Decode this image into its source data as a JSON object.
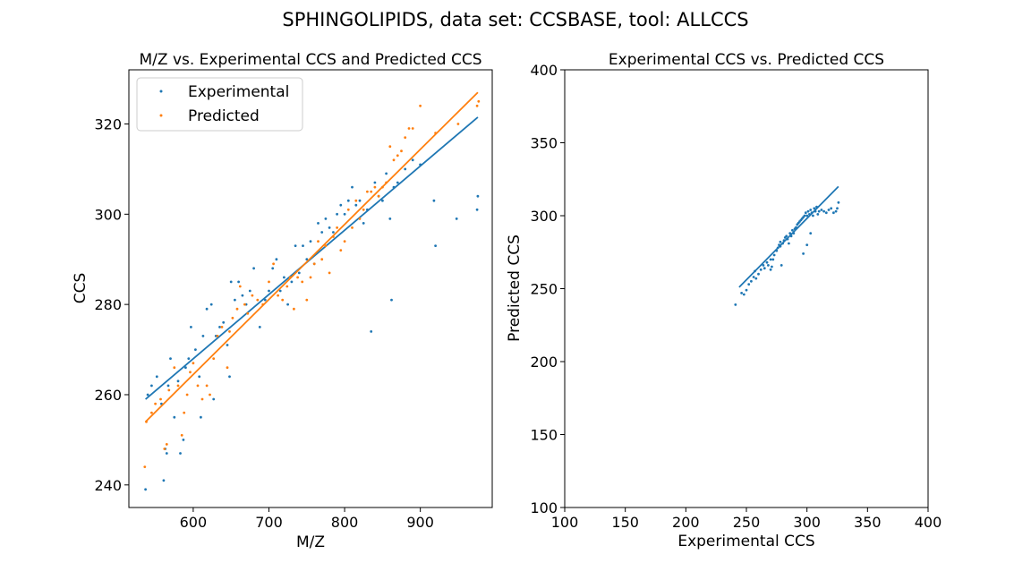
{
  "figure": {
    "suptitle": "SPHINGOLIPIDS, data set: CCSBASE, tool: ALLCCS"
  },
  "colors": {
    "experimental": "#1f77b4",
    "predicted": "#ff7f0e",
    "axes": "#000000",
    "background": "#ffffff"
  },
  "chart_data": [
    {
      "type": "scatter",
      "title": "M/Z vs. Experimental CCS and Predicted CCS",
      "xlabel": "M/Z",
      "ylabel": "CCS",
      "xlim": [
        515,
        995
      ],
      "ylim": [
        235,
        332
      ],
      "xticks": [
        600,
        700,
        800,
        900
      ],
      "yticks": [
        240,
        260,
        280,
        300,
        320
      ],
      "grid": false,
      "legend": "top-left",
      "series": [
        {
          "name": "Experimental",
          "color": "#1f77b4",
          "points": [
            [
              537,
              239
            ],
            [
              540,
              260
            ],
            [
              545,
              262
            ],
            [
              552,
              264
            ],
            [
              558,
              258
            ],
            [
              561,
              241
            ],
            [
              563,
              248
            ],
            [
              565,
              247
            ],
            [
              567,
              262
            ],
            [
              570,
              268
            ],
            [
              575,
              255
            ],
            [
              580,
              263
            ],
            [
              583,
              247
            ],
            [
              587,
              250
            ],
            [
              590,
              266
            ],
            [
              594,
              268
            ],
            [
              597,
              275
            ],
            [
              603,
              270
            ],
            [
              608,
              264
            ],
            [
              610,
              255
            ],
            [
              613,
              273
            ],
            [
              618,
              279
            ],
            [
              624,
              280
            ],
            [
              627,
              259
            ],
            [
              630,
              273
            ],
            [
              635,
              275
            ],
            [
              640,
              276
            ],
            [
              645,
              271
            ],
            [
              648,
              264
            ],
            [
              650,
              285
            ],
            [
              655,
              281
            ],
            [
              660,
              285
            ],
            [
              665,
              282
            ],
            [
              670,
              280
            ],
            [
              675,
              283
            ],
            [
              680,
              288
            ],
            [
              688,
              275
            ],
            [
              695,
              281
            ],
            [
              700,
              283
            ],
            [
              705,
              288
            ],
            [
              710,
              290
            ],
            [
              715,
              283
            ],
            [
              720,
              286
            ],
            [
              725,
              280
            ],
            [
              730,
              285
            ],
            [
              735,
              293
            ],
            [
              740,
              287
            ],
            [
              745,
              293
            ],
            [
              750,
              290
            ],
            [
              755,
              294
            ],
            [
              760,
              289
            ],
            [
              765,
              298
            ],
            [
              770,
              296
            ],
            [
              775,
              299
            ],
            [
              780,
              297
            ],
            [
              785,
              296
            ],
            [
              790,
              300
            ],
            [
              795,
              302
            ],
            [
              800,
              300
            ],
            [
              805,
              303
            ],
            [
              810,
              306
            ],
            [
              815,
              302
            ],
            [
              820,
              303
            ],
            [
              825,
              298
            ],
            [
              830,
              301
            ],
            [
              835,
              274
            ],
            [
              840,
              307
            ],
            [
              845,
              304
            ],
            [
              850,
              303
            ],
            [
              855,
              309
            ],
            [
              860,
              299
            ],
            [
              862,
              281
            ],
            [
              865,
              306
            ],
            [
              870,
              307
            ],
            [
              880,
              310
            ],
            [
              890,
              312
            ],
            [
              900,
              311
            ],
            [
              918,
              303
            ],
            [
              920,
              293
            ],
            [
              948,
              299
            ],
            [
              975,
              301
            ],
            [
              976,
              304
            ]
          ],
          "trend": [
            [
              537,
              259
            ],
            [
              976,
              321.5
            ]
          ]
        },
        {
          "name": "Predicted",
          "color": "#ff7f0e",
          "points": [
            [
              536,
              244
            ],
            [
              538,
              254
            ],
            [
              545,
              256
            ],
            [
              550,
              258
            ],
            [
              557,
              259
            ],
            [
              562,
              248
            ],
            [
              565,
              249
            ],
            [
              568,
              261
            ],
            [
              575,
              266
            ],
            [
              580,
              262
            ],
            [
              585,
              251
            ],
            [
              588,
              256
            ],
            [
              592,
              260
            ],
            [
              596,
              265
            ],
            [
              600,
              267
            ],
            [
              606,
              262
            ],
            [
              612,
              259
            ],
            [
              618,
              262
            ],
            [
              622,
              260
            ],
            [
              627,
              268
            ],
            [
              632,
              273
            ],
            [
              638,
              275
            ],
            [
              645,
              266
            ],
            [
              648,
              274
            ],
            [
              652,
              277
            ],
            [
              658,
              279
            ],
            [
              662,
              284
            ],
            [
              668,
              280
            ],
            [
              672,
              278
            ],
            [
              678,
              282
            ],
            [
              685,
              281
            ],
            [
              692,
              280
            ],
            [
              700,
              285
            ],
            [
              706,
              289
            ],
            [
              712,
              282
            ],
            [
              718,
              281
            ],
            [
              724,
              284
            ],
            [
              728,
              286
            ],
            [
              733,
              279
            ],
            [
              738,
              286
            ],
            [
              744,
              285
            ],
            [
              750,
              281
            ],
            [
              755,
              286
            ],
            [
              760,
              289
            ],
            [
              765,
              294
            ],
            [
              770,
              290
            ],
            [
              775,
              293
            ],
            [
              780,
              287
            ],
            [
              785,
              295
            ],
            [
              790,
              297
            ],
            [
              795,
              292
            ],
            [
              800,
              294
            ],
            [
              805,
              301
            ],
            [
              810,
              297
            ],
            [
              815,
              303
            ],
            [
              820,
              299
            ],
            [
              825,
              301
            ],
            [
              830,
              305
            ],
            [
              835,
              305
            ],
            [
              840,
              306
            ],
            [
              845,
              304
            ],
            [
              850,
              306
            ],
            [
              855,
              307
            ],
            [
              860,
              315
            ],
            [
              865,
              312
            ],
            [
              870,
              313
            ],
            [
              875,
              314
            ],
            [
              880,
              317
            ],
            [
              885,
              319
            ],
            [
              890,
              319
            ],
            [
              900,
              324
            ],
            [
              920,
              318
            ],
            [
              950,
              320
            ],
            [
              975,
              324
            ],
            [
              977,
              325
            ]
          ],
          "trend": [
            [
              537,
              254
            ],
            [
              976,
              327
            ]
          ]
        }
      ]
    },
    {
      "type": "scatter",
      "title": "Experimental CCS vs. Predicted CCS",
      "xlabel": "Experimental CCS",
      "ylabel": "Predicted CCS",
      "xlim": [
        100,
        400
      ],
      "ylim": [
        100,
        400
      ],
      "xticks": [
        100,
        150,
        200,
        250,
        300,
        350,
        400
      ],
      "yticks": [
        100,
        150,
        200,
        250,
        300,
        350,
        400
      ],
      "grid": false,
      "series": [
        {
          "color": "#1f77b4",
          "points": [
            [
              241,
              239
            ],
            [
              246,
              247
            ],
            [
              248,
              246
            ],
            [
              250,
              249
            ],
            [
              252,
              253
            ],
            [
              254,
              255
            ],
            [
              256,
              258
            ],
            [
              257,
              262
            ],
            [
              258,
              257
            ],
            [
              260,
              260
            ],
            [
              262,
              263
            ],
            [
              264,
              266
            ],
            [
              265,
              264
            ],
            [
              267,
              268
            ],
            [
              268,
              266
            ],
            [
              270,
              270
            ],
            [
              271,
              265
            ],
            [
              272,
              270
            ],
            [
              273,
              273
            ],
            [
              275,
              276
            ],
            [
              276,
              278
            ],
            [
              277,
              280
            ],
            [
              278,
              279
            ],
            [
              279,
              266
            ],
            [
              280,
              281
            ],
            [
              281,
              283
            ],
            [
              282,
              285
            ],
            [
              283,
              286
            ],
            [
              284,
              284
            ],
            [
              285,
              281
            ],
            [
              286,
              288
            ],
            [
              287,
              286
            ],
            [
              288,
              290
            ],
            [
              289,
              288
            ],
            [
              290,
              291
            ],
            [
              291,
              292
            ],
            [
              292,
              294
            ],
            [
              293,
              295
            ],
            [
              294,
              296
            ],
            [
              295,
              297
            ],
            [
              296,
              298
            ],
            [
              297,
              299
            ],
            [
              298,
              300
            ],
            [
              299,
              302
            ],
            [
              300,
              300
            ],
            [
              301,
              303
            ],
            [
              302,
              301
            ],
            [
              303,
              304
            ],
            [
              304,
              302
            ],
            [
              305,
              300
            ],
            [
              306,
              305
            ],
            [
              307,
              303
            ],
            [
              308,
              306
            ],
            [
              309,
              301
            ],
            [
              310,
              303
            ],
            [
              312,
              304
            ],
            [
              314,
              303
            ],
            [
              316,
              302
            ],
            [
              318,
              304
            ],
            [
              320,
              305
            ],
            [
              322,
              302
            ],
            [
              324,
              303
            ],
            [
              325,
              305
            ],
            [
              326,
              309
            ],
            [
              300,
              280
            ],
            [
              297,
              274
            ],
            [
              303,
              288
            ],
            [
              278,
              282
            ],
            [
              270,
              263
            ]
          ],
          "trend": [
            [
              244,
              251
            ],
            [
              326,
              320
            ]
          ]
        }
      ]
    }
  ]
}
